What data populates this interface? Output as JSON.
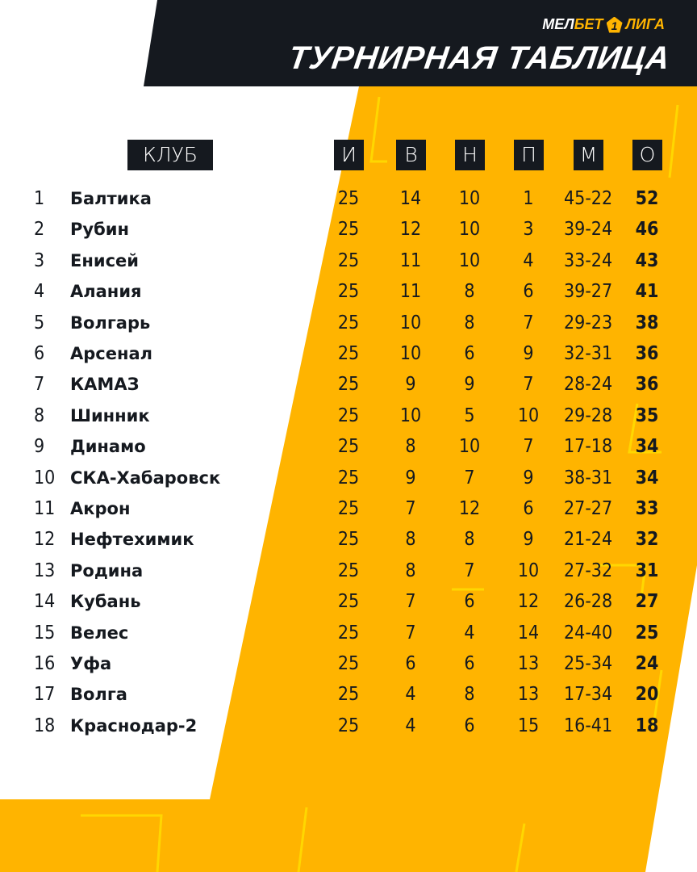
{
  "brand": {
    "part1": "МЕЛ",
    "part2": "БЕТ",
    "number": "1",
    "part3": "ЛИГА"
  },
  "title": "ТУРНИРНАЯ ТАБЛИЦА",
  "colors": {
    "accent": "#ffb400",
    "dark": "#15191f",
    "background": "#ffffff"
  },
  "headers": {
    "club": "КЛУБ",
    "played": "И",
    "won": "В",
    "drawn": "Н",
    "lost": "П",
    "goals": "М",
    "points": "О"
  },
  "rows": [
    {
      "pos": "1",
      "club": "Балтика",
      "p": "25",
      "w": "14",
      "d": "10",
      "l": "1",
      "g": "45-22",
      "pts": "52"
    },
    {
      "pos": "2",
      "club": "Рубин",
      "p": "25",
      "w": "12",
      "d": "10",
      "l": "3",
      "g": "39-24",
      "pts": "46"
    },
    {
      "pos": "3",
      "club": "Енисей",
      "p": "25",
      "w": "11",
      "d": "10",
      "l": "4",
      "g": "33-24",
      "pts": "43"
    },
    {
      "pos": "4",
      "club": "Алания",
      "p": "25",
      "w": "11",
      "d": "8",
      "l": "6",
      "g": "39-27",
      "pts": "41"
    },
    {
      "pos": "5",
      "club": "Волгарь",
      "p": "25",
      "w": "10",
      "d": "8",
      "l": "7",
      "g": "29-23",
      "pts": "38"
    },
    {
      "pos": "6",
      "club": "Арсенал",
      "p": "25",
      "w": "10",
      "d": "6",
      "l": "9",
      "g": "32-31",
      "pts": "36"
    },
    {
      "pos": "7",
      "club": "КАМАЗ",
      "p": "25",
      "w": "9",
      "d": "9",
      "l": "7",
      "g": "28-24",
      "pts": "36"
    },
    {
      "pos": "8",
      "club": "Шинник",
      "p": "25",
      "w": "10",
      "d": "5",
      "l": "10",
      "g": "29-28",
      "pts": "35"
    },
    {
      "pos": "9",
      "club": "Динамо",
      "p": "25",
      "w": "8",
      "d": "10",
      "l": "7",
      "g": "17-18",
      "pts": "34"
    },
    {
      "pos": "10",
      "club": "СКА-Хабаровск",
      "p": "25",
      "w": "9",
      "d": "7",
      "l": "9",
      "g": "38-31",
      "pts": "34"
    },
    {
      "pos": "11",
      "club": "Акрон",
      "p": "25",
      "w": "7",
      "d": "12",
      "l": "6",
      "g": "27-27",
      "pts": "33"
    },
    {
      "pos": "12",
      "club": "Нефтехимик",
      "p": "25",
      "w": "8",
      "d": "8",
      "l": "9",
      "g": "21-24",
      "pts": "32"
    },
    {
      "pos": "13",
      "club": "Родина",
      "p": "25",
      "w": "8",
      "d": "7",
      "l": "10",
      "g": "27-32",
      "pts": "31"
    },
    {
      "pos": "14",
      "club": "Кубань",
      "p": "25",
      "w": "7",
      "d": "6",
      "l": "12",
      "g": "26-28",
      "pts": "27"
    },
    {
      "pos": "15",
      "club": "Велес",
      "p": "25",
      "w": "7",
      "d": "4",
      "l": "14",
      "g": "24-40",
      "pts": "25"
    },
    {
      "pos": "16",
      "club": "Уфа",
      "p": "25",
      "w": "6",
      "d": "6",
      "l": "13",
      "g": "25-34",
      "pts": "24"
    },
    {
      "pos": "17",
      "club": "Волга",
      "p": "25",
      "w": "4",
      "d": "8",
      "l": "13",
      "g": "17-34",
      "pts": "20"
    },
    {
      "pos": "18",
      "club": "Краснодар-2",
      "p": "25",
      "w": "4",
      "d": "6",
      "l": "15",
      "g": "16-41",
      "pts": "18"
    }
  ]
}
